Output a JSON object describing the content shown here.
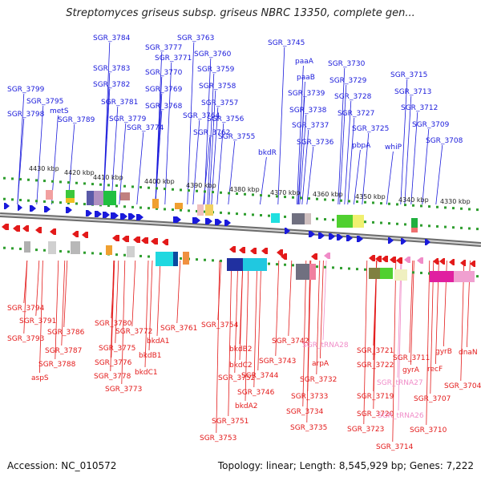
{
  "title": "Streptomyces griseus subsp. griseus NBRC 13350, complete gen...",
  "footer": {
    "accession": "Accession: NC_010572",
    "stats": "Topology: linear; Length: 8,545,929 bp; Genes: 7,222"
  },
  "colors": {
    "forward_strand": "#1a1adb",
    "reverse_strand": "#e31a1a",
    "trna": "#f08cc8",
    "backbone": "#8a8a8a",
    "tick": "#2f9e2f"
  },
  "scale": {
    "unit": "kbp",
    "ticks": [
      "4430 kbp",
      "4420 kbp",
      "4410 kbp",
      "4400 kbp",
      "4390 kbp",
      "4380 kbp",
      "4370 kbp",
      "4360 kbp",
      "4350 kbp",
      "4340 kbp",
      "4330 kbp"
    ]
  },
  "labels": {
    "top": [
      "SGR_3784",
      "SGR_3763",
      "SGR_3777",
      "SGR_3771",
      "SGR_3760",
      "SGR_3783",
      "SGR_3770",
      "SGR_3759",
      "SGR_3782",
      "SGR_3769",
      "SGR_3758",
      "SGR_3781",
      "SGR_3768",
      "SGR_3757",
      "SGR_3779",
      "SGR_3764",
      "SGR_3756",
      "SGR_3774",
      "SGR_3762",
      "SGR_3755",
      "SGR_3799",
      "SGR_3795",
      "SGR_3798",
      "metS",
      "SGR_3789",
      "SGR_3745",
      "paaA",
      "paaB",
      "SGR_3739",
      "SGR_3738",
      "SGR_3737",
      "SGR_3736",
      "bkdR",
      "SGR_3730",
      "SGR_3729",
      "SGR_3728",
      "SGR_3727",
      "SGR_3725",
      "pbpA",
      "SGR_3715",
      "SGR_3713",
      "SGR_3712",
      "SGR_3709",
      "SGR_3708",
      "whiP"
    ],
    "bottom": [
      "SGR_3794",
      "SGR_3791",
      "SGR_3793",
      "SGR_3786",
      "SGR_3787",
      "SGR_3788",
      "aspS",
      "SGR_3780",
      "SGR_3775",
      "SGR_3776",
      "SGR_3778",
      "SGR_3773",
      "SGR_3772",
      "bkdA1",
      "bkdB1",
      "bkdC1",
      "SGR_3761",
      "SGR_3754",
      "SGR_3752",
      "SGR_3751",
      "SGR_3753",
      "bkdB2",
      "bkdC2",
      "bkdA2",
      "SGR_3746",
      "SGR_3744",
      "SGR_3743",
      "SGR_3742",
      "SGR_tRNA28",
      "arpA",
      "SGR_3732",
      "SGR_3733",
      "SGR_3734",
      "SGR_3735",
      "SGR_3721",
      "SGR_3722",
      "SGR_tRNA27",
      "SGR_3719",
      "SGR_3720",
      "SGR_3723",
      "SGR_tRNA26",
      "SGR_3714",
      "SGR_3711",
      "gyrA",
      "SGR_3707",
      "SGR_3710",
      "gyrB",
      "dnaN",
      "recF",
      "SGR_3704"
    ]
  }
}
